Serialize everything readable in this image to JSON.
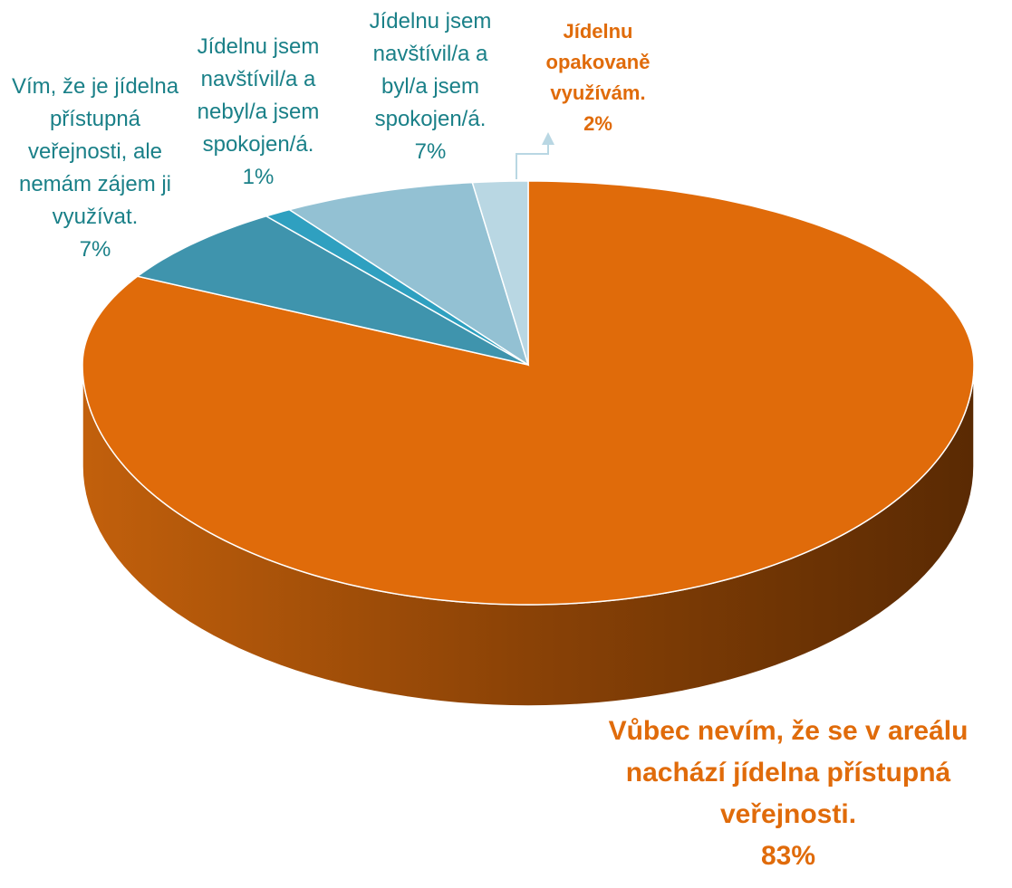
{
  "chart_data": {
    "type": "pie3d",
    "categories": [
      "Vůbec nevím, že se v areálu nachází jídelna přístupná veřejnosti.",
      "Vím, že je jídelna přístupná veřejnosti, ale nemám zájem ji využívat.",
      "Jídelnu jsem navštívil/a a nebyl/a jsem spokojen/á.",
      "Jídelnu jsem navštívil/a a byl/a jsem spokojen/á.",
      "Jídelnu opakovaně využívám."
    ],
    "values": [
      83,
      7,
      1,
      7,
      2
    ],
    "value_labels": [
      "83%",
      "7%",
      "1%",
      "7%",
      "2%"
    ],
    "colors": [
      "#e06b0a",
      "#3f94ad",
      "#2fa0c0",
      "#93c1d3",
      "#b9d7e3"
    ]
  }
}
